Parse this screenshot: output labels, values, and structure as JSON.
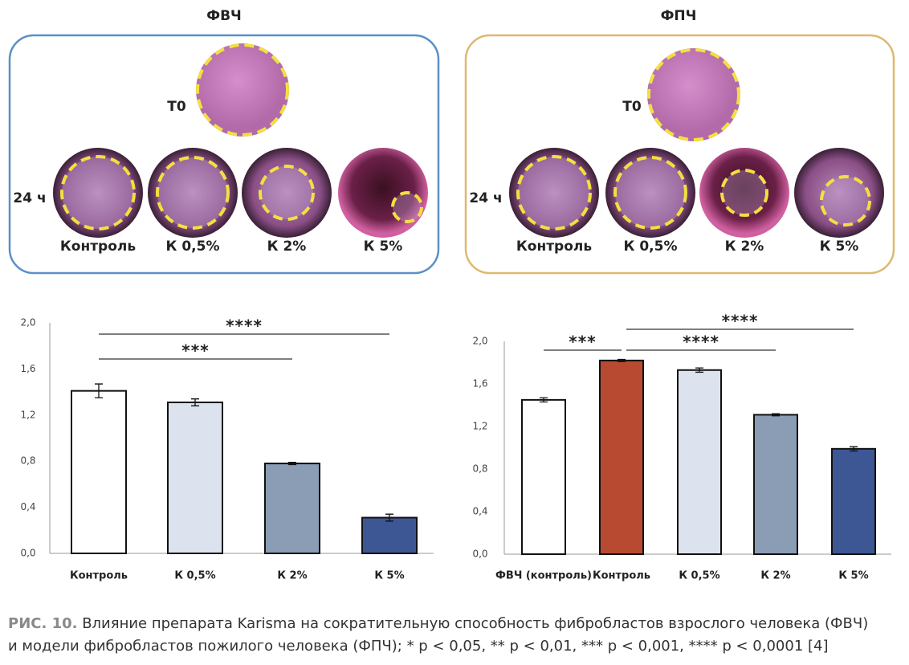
{
  "photos": [
    {
      "title": "ФВЧ",
      "t0": "Т0",
      "t24": "24 ч",
      "labels": [
        "Контроль",
        "К 0,5%",
        "К 2%",
        "К 5%"
      ]
    },
    {
      "title": "ФПЧ",
      "t0": "Т0",
      "t24": "24 ч",
      "labels": [
        "Контроль",
        "К 0,5%",
        "К 2%",
        "К 5%"
      ]
    }
  ],
  "chart_data": [
    {
      "type": "bar",
      "categories": [
        "Контроль",
        "К 0,5%",
        "К 2%",
        "К 5%"
      ],
      "values": [
        1.41,
        1.31,
        0.78,
        0.31
      ],
      "errors": [
        0.06,
        0.03,
        0.01,
        0.03
      ],
      "colors": [
        "#ffffff",
        "#dde3ee",
        "#8b9cb5",
        "#3d5694"
      ],
      "ylim": [
        0,
        2
      ],
      "yticks": [
        {
          "value": 0,
          "label": "0,0"
        },
        {
          "value": 0.4,
          "label": "0,4"
        },
        {
          "value": 0.8,
          "label": "0,8"
        },
        {
          "value": 1.2,
          "label": "1,2"
        },
        {
          "value": 1.6,
          "label": "1,6"
        },
        {
          "value": 2,
          "label": "2,0"
        }
      ],
      "significance": [
        {
          "pair": [
            "Контроль",
            "К 5%"
          ],
          "label": "****"
        },
        {
          "pair": [
            "Контроль",
            "К 2%"
          ],
          "label": "***"
        }
      ]
    },
    {
      "type": "bar",
      "categories": [
        "ФВЧ (контроль)",
        "Контроль",
        "К 0,5%",
        "К 2%",
        "К 5%"
      ],
      "values": [
        1.45,
        1.82,
        1.73,
        1.31,
        0.99
      ],
      "errors": [
        0.02,
        0.01,
        0.02,
        0.01,
        0.02
      ],
      "colors": [
        "#ffffff",
        "#b94a32",
        "#dde3ee",
        "#8b9cb5",
        "#3d5694"
      ],
      "ylim": [
        0,
        2
      ],
      "yticks": [
        {
          "value": 0,
          "label": "0,0"
        },
        {
          "value": 0.4,
          "label": "0,4"
        },
        {
          "value": 0.8,
          "label": "0,8"
        },
        {
          "value": 1.2,
          "label": "1,2"
        },
        {
          "value": 1.6,
          "label": "1,6"
        },
        {
          "value": 2,
          "label": "2,0"
        }
      ],
      "significance": [
        {
          "pair": [
            "ФВЧ (контроль)",
            "Контроль"
          ],
          "label": "***"
        },
        {
          "pair": [
            "Контроль",
            "К 5%"
          ],
          "label": "****"
        },
        {
          "pair": [
            "Контроль",
            "К 2%"
          ],
          "label": "****"
        }
      ]
    }
  ],
  "caption": {
    "label": "РИС. 10.",
    "lines": [
      "Влияние препарата Karisma на сократительную способность фибробластов взрослого человека (ФВЧ)",
      "и модели фибробластов пожилого человека (ФПЧ); * p < 0,05, ** p < 0,01, *** p < 0,001, **** p < 0,0001 [4]"
    ]
  }
}
